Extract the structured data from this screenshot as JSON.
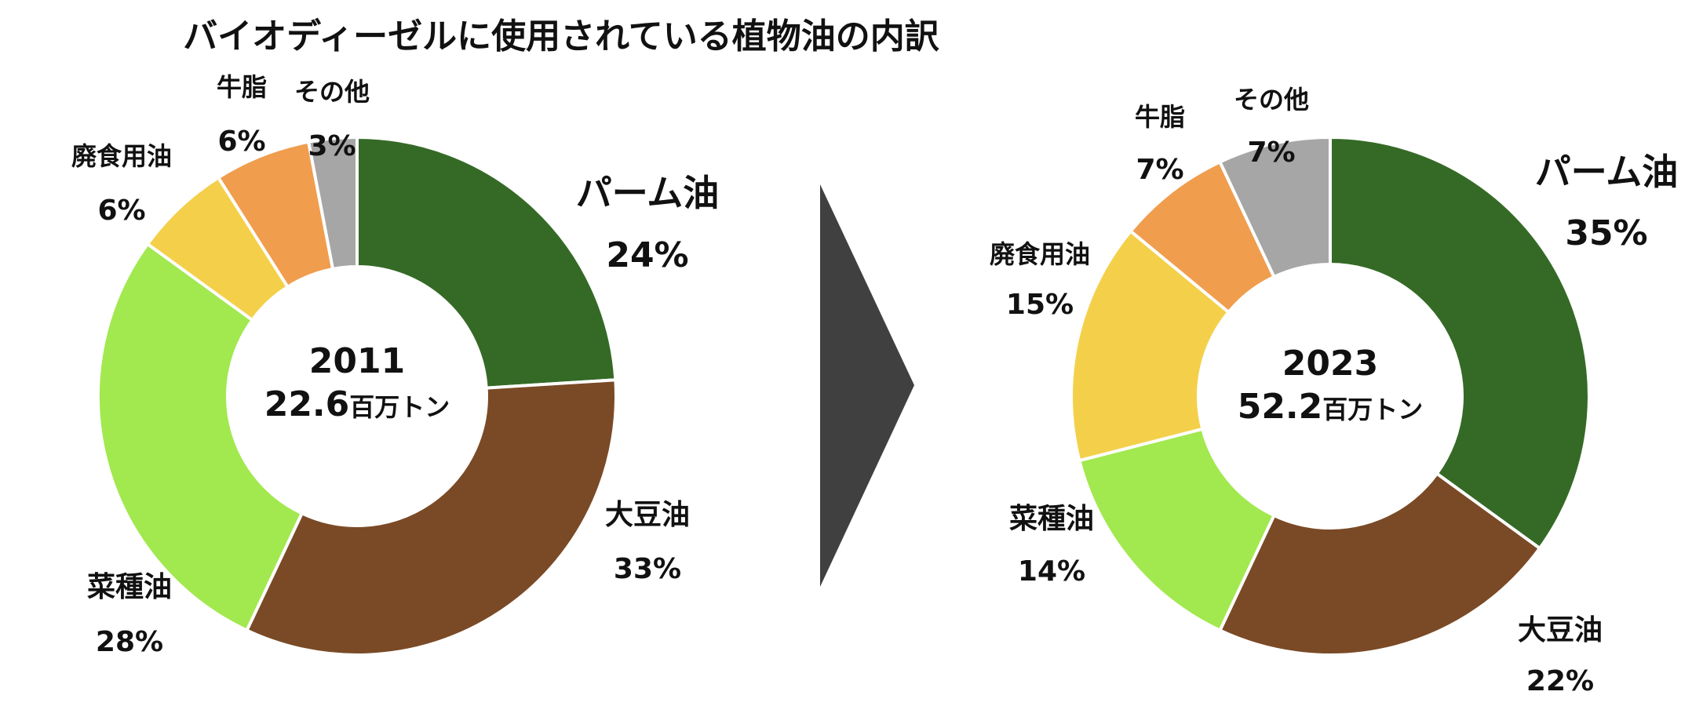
{
  "title": "バイオディーゼルに使用されている植物油の内訳",
  "chart_data": [
    {
      "type": "pie",
      "center_label": {
        "year": "2011",
        "total": "22.6",
        "unit": "百万トン"
      },
      "categories": [
        "パーム油",
        "大豆油",
        "菜種油",
        "廃食用油",
        "牛脂",
        "その他"
      ],
      "values": [
        24,
        33,
        28,
        6,
        6,
        3
      ],
      "value_labels": [
        "24%",
        "33%",
        "28%",
        "6%",
        "6%",
        "3%"
      ]
    },
    {
      "type": "pie",
      "center_label": {
        "year": "2023",
        "total": "52.2",
        "unit": "百万トン"
      },
      "categories": [
        "パーム油",
        "大豆油",
        "菜種油",
        "廃食用油",
        "牛脂",
        "その他"
      ],
      "values": [
        35,
        22,
        14,
        15,
        7,
        7
      ],
      "value_labels": [
        "35%",
        "22%",
        "14%",
        "15%",
        "7%",
        "7%"
      ]
    }
  ],
  "colors": {
    "パーム油": "#356a26",
    "大豆油": "#7a4a26",
    "菜種油": "#a2e84f",
    "廃食用油": "#f4d04a",
    "牛脂": "#f09d4e",
    "その他": "#a6a6a6"
  },
  "arrow_color": "#404040"
}
